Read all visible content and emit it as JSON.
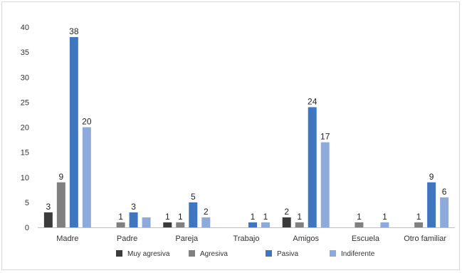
{
  "chart_data": {
    "type": "bar",
    "categories": [
      "Madre",
      "Padre",
      "Pareja",
      "Trabajo",
      "Amigos",
      "Escuela",
      "Otro familiar"
    ],
    "series": [
      {
        "name": "Muy agresiva",
        "color": "#3b3b3b",
        "values": [
          3,
          0,
          1,
          0,
          2,
          0,
          0
        ]
      },
      {
        "name": "Agresiva",
        "color": "#808080",
        "values": [
          9,
          1,
          1,
          0,
          1,
          1,
          1
        ]
      },
      {
        "name": "Pasiva",
        "color": "#3f76c0",
        "values": [
          38,
          3,
          5,
          1,
          24,
          0,
          9
        ]
      },
      {
        "name": "Indiferente",
        "color": "#8eaadb",
        "values": [
          20,
          2,
          2,
          1,
          17,
          1,
          6
        ]
      }
    ],
    "data_labels": [
      [
        "3",
        "9",
        "38",
        "20"
      ],
      [
        "",
        "1",
        "3",
        ""
      ],
      [
        "1",
        "1",
        "5",
        "2"
      ],
      [
        "",
        "",
        "1",
        "1"
      ],
      [
        "2",
        "1",
        "24",
        "17"
      ],
      [
        "",
        "1",
        "",
        "1"
      ],
      [
        "",
        "1",
        "9",
        "6"
      ]
    ],
    "ylim": [
      0,
      40
    ],
    "yticks": [
      0,
      5,
      10,
      15,
      20,
      25,
      30,
      35,
      40
    ],
    "grid": false,
    "legend": "bottom"
  }
}
